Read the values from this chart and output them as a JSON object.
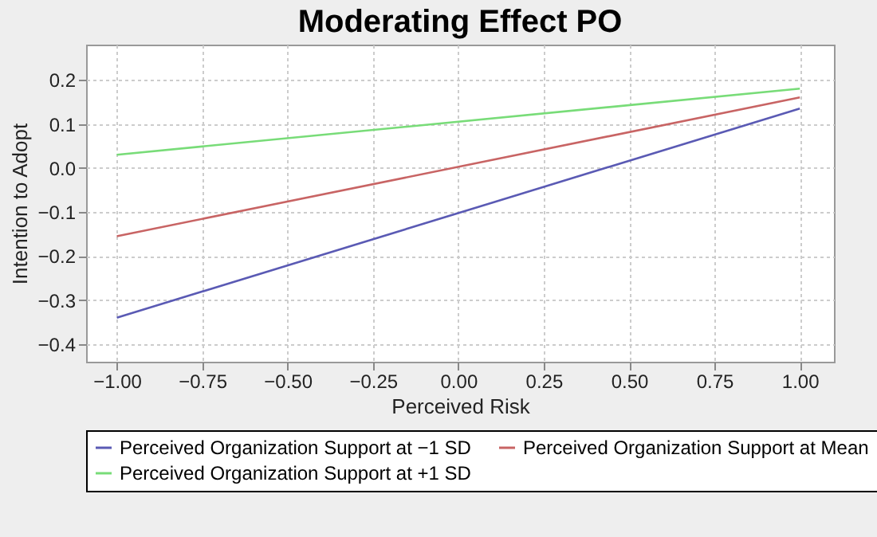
{
  "chart_data": {
    "type": "line",
    "title": "Moderating Effect PO",
    "xlabel": "Perceived Risk",
    "ylabel": "Intention to Adopt",
    "x": [
      -1,
      1
    ],
    "series": [
      {
        "name": "Perceived Organization Support at −1 SD",
        "color": "#5a5ab4",
        "values": [
          -0.34,
          0.135
        ]
      },
      {
        "name": "Perceived Organization Support at Mean",
        "color": "#c86464",
        "values": [
          -0.155,
          0.16
        ]
      },
      {
        "name": "Perceived Organization Support at +1 SD",
        "color": "#78dc78",
        "values": [
          0.03,
          0.18
        ]
      }
    ],
    "xlim": [
      -1.09,
      1.1
    ],
    "ylim": [
      -0.44,
      0.28
    ],
    "xticks": [
      {
        "value": -1,
        "label": "−1.00"
      },
      {
        "value": -0.75,
        "label": "−0.75"
      },
      {
        "value": -0.5,
        "label": "−0.50"
      },
      {
        "value": -0.25,
        "label": "−0.25"
      },
      {
        "value": 0,
        "label": "0.00"
      },
      {
        "value": 0.25,
        "label": "0.25"
      },
      {
        "value": 0.5,
        "label": "0.50"
      },
      {
        "value": 0.75,
        "label": "0.75"
      },
      {
        "value": 1,
        "label": "1.00"
      }
    ],
    "yticks": [
      {
        "value": -0.4,
        "label": "−0.4"
      },
      {
        "value": -0.3,
        "label": "−0.3"
      },
      {
        "value": -0.2,
        "label": "−0.2"
      },
      {
        "value": -0.1,
        "label": "−0.1"
      },
      {
        "value": 0,
        "label": "0.0"
      },
      {
        "value": 0.1,
        "label": "0.1"
      },
      {
        "value": 0.2,
        "label": "0.2"
      }
    ],
    "grid": true,
    "legend": "bottom",
    "line_style": "solid"
  }
}
